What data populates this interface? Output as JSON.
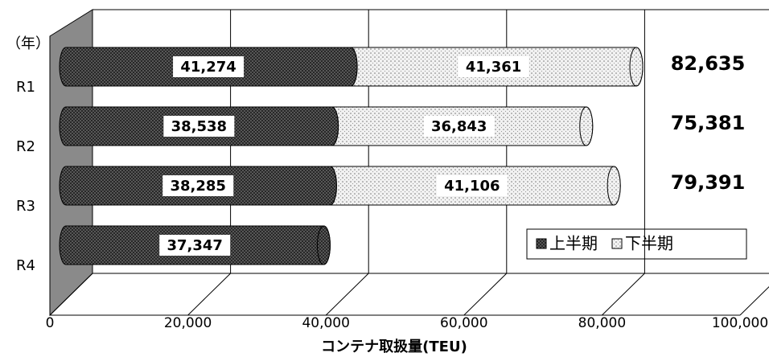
{
  "chart_data": {
    "type": "bar3d_stacked_horizontal",
    "y_label": "（年）",
    "x_label": "コンテナ取扱量(TEU)",
    "categories": [
      "R1",
      "R2",
      "R3",
      "R4"
    ],
    "series": [
      {
        "name": "上半期",
        "color": "#555555",
        "values": [
          41274,
          38538,
          38285,
          37347
        ],
        "value_labels": [
          "41,274",
          "38,538",
          "38,285",
          "37,347"
        ]
      },
      {
        "name": "下半期",
        "color": "#e4e4e4",
        "values": [
          41361,
          36843,
          41106,
          null
        ],
        "value_labels": [
          "41,361",
          "36,843",
          "41,106",
          null
        ]
      }
    ],
    "totals": [
      82635,
      75381,
      79391,
      null
    ],
    "total_labels": [
      "82,635",
      "75,381",
      "79,391",
      null
    ],
    "xlim": [
      0,
      100000
    ],
    "xticks": [
      0,
      {
        "value": 20000,
        "label": "20,000"
      },
      {
        "value": 40000,
        "label": "40,000"
      },
      {
        "value": 60000,
        "label": "60,000"
      },
      {
        "value": 80000,
        "label": "80,000"
      },
      {
        "value": 100000,
        "label": "100,000"
      }
    ],
    "grid": true
  }
}
